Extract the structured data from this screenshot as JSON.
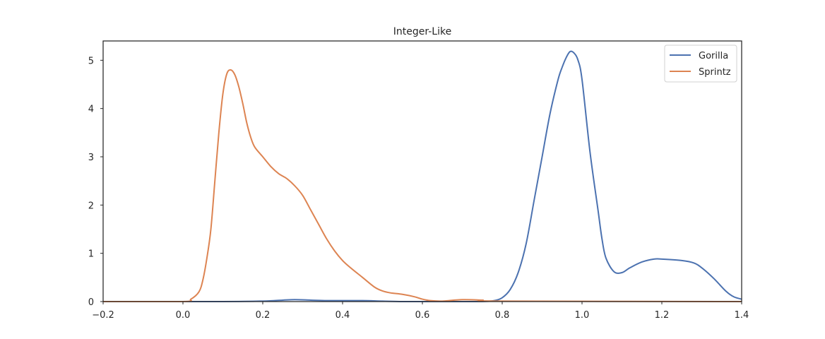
{
  "chart_data": {
    "type": "line",
    "title": "Integer-Like",
    "xlabel": "",
    "ylabel": "",
    "xlim": [
      -0.2,
      1.4
    ],
    "ylim": [
      0,
      5.4
    ],
    "xticks": [
      -0.2,
      0.0,
      0.2,
      0.4,
      0.6,
      0.8,
      1.0,
      1.2,
      1.4
    ],
    "xtick_labels": [
      "−0.2",
      "0.0",
      "0.2",
      "0.4",
      "0.6",
      "0.8",
      "1.0",
      "1.2",
      "1.4"
    ],
    "yticks": [
      0,
      1,
      2,
      3,
      4,
      5
    ],
    "ytick_labels": [
      "0",
      "1",
      "2",
      "3",
      "4",
      "5"
    ],
    "grid": false,
    "legend_position": "top-right",
    "series": [
      {
        "name": "Gorilla",
        "color": "#4c72b0",
        "x": [
          -0.2,
          0.1,
          0.2,
          0.25,
          0.28,
          0.32,
          0.36,
          0.4,
          0.45,
          0.5,
          0.55,
          0.6,
          0.7,
          0.75,
          0.78,
          0.8,
          0.82,
          0.84,
          0.86,
          0.88,
          0.9,
          0.92,
          0.94,
          0.95,
          0.96,
          0.97,
          0.98,
          0.99,
          1.0,
          1.02,
          1.04,
          1.05,
          1.06,
          1.08,
          1.1,
          1.12,
          1.15,
          1.18,
          1.2,
          1.25,
          1.28,
          1.3,
          1.33,
          1.36,
          1.38,
          1.4
        ],
        "values": [
          0.0,
          0.0,
          0.01,
          0.03,
          0.04,
          0.03,
          0.02,
          0.02,
          0.02,
          0.01,
          0.0,
          0.0,
          0.0,
          0.0,
          0.02,
          0.08,
          0.25,
          0.6,
          1.2,
          2.1,
          3.0,
          3.9,
          4.6,
          4.85,
          5.05,
          5.18,
          5.15,
          5.0,
          4.6,
          3.1,
          1.9,
          1.3,
          0.9,
          0.62,
          0.6,
          0.7,
          0.82,
          0.88,
          0.88,
          0.85,
          0.8,
          0.7,
          0.48,
          0.22,
          0.1,
          0.05
        ]
      },
      {
        "name": "Sprintz",
        "color": "#dd8452",
        "x": [
          -0.2,
          0.0,
          0.02,
          0.04,
          0.05,
          0.06,
          0.07,
          0.08,
          0.09,
          0.1,
          0.11,
          0.12,
          0.13,
          0.14,
          0.15,
          0.16,
          0.17,
          0.18,
          0.2,
          0.22,
          0.24,
          0.26,
          0.28,
          0.3,
          0.32,
          0.34,
          0.36,
          0.38,
          0.4,
          0.42,
          0.45,
          0.48,
          0.5,
          0.52,
          0.55,
          0.58,
          0.6,
          0.62,
          0.65,
          0.7,
          0.75,
          0.8,
          1.4
        ],
        "values": [
          0.0,
          0.0,
          0.05,
          0.2,
          0.45,
          0.9,
          1.5,
          2.5,
          3.5,
          4.3,
          4.72,
          4.8,
          4.7,
          4.45,
          4.1,
          3.7,
          3.4,
          3.2,
          3.0,
          2.8,
          2.65,
          2.55,
          2.4,
          2.2,
          1.9,
          1.6,
          1.3,
          1.05,
          0.85,
          0.7,
          0.5,
          0.3,
          0.22,
          0.18,
          0.15,
          0.1,
          0.05,
          0.02,
          0.01,
          0.04,
          0.03,
          0.01,
          0.0
        ]
      }
    ]
  }
}
